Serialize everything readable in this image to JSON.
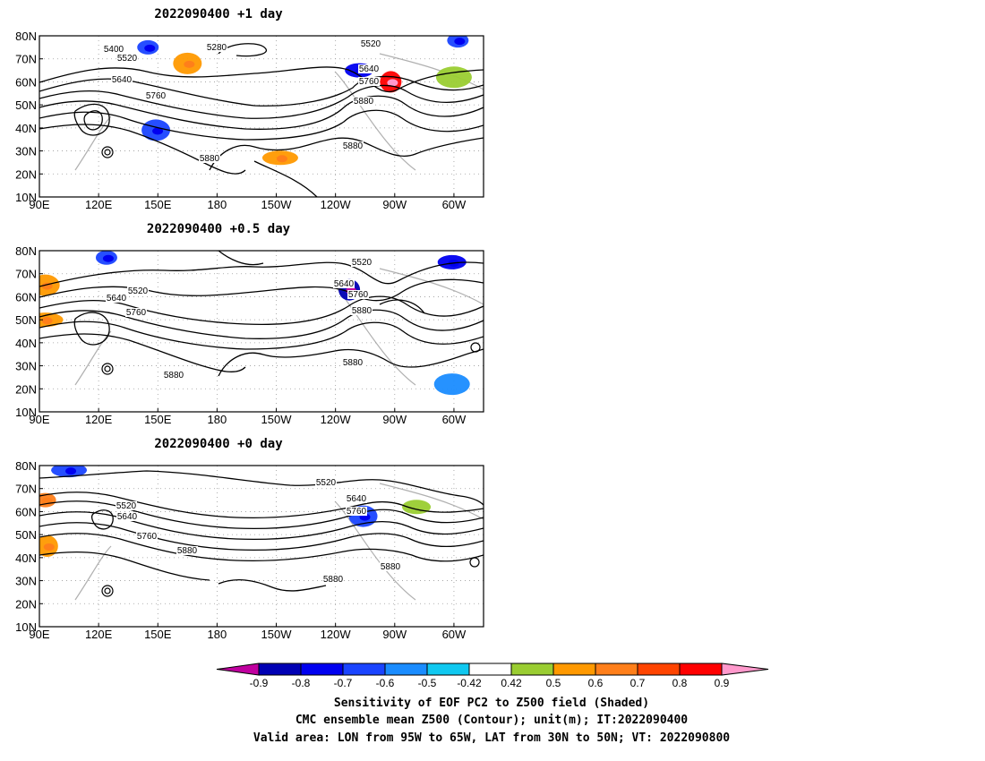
{
  "chart_data": [
    {
      "type": "map",
      "title": "2022090400  +1 day",
      "x_ticks": [
        "90E",
        "120E",
        "150E",
        "180",
        "150W",
        "120W",
        "90W",
        "60W"
      ],
      "y_ticks": [
        "10N",
        "20N",
        "30N",
        "40N",
        "50N",
        "60N",
        "70N",
        "80N"
      ],
      "lon_range": [
        "90E",
        "45W"
      ],
      "lat_range": [
        "10N",
        "80N"
      ],
      "contour_labels": [
        "5280",
        "5400",
        "5520",
        "5640",
        "5760",
        "5880",
        "5520",
        "5640",
        "5760",
        "5880",
        "5880"
      ],
      "shaded_patches": [
        {
          "lon": 145,
          "lat": 75,
          "value": -0.6
        },
        {
          "lon": 149,
          "lat": 39,
          "value": -0.6
        },
        {
          "lon": 212,
          "lat": 27,
          "value": 0.6
        },
        {
          "lon": 268,
          "lat": 60,
          "value": 0.8
        },
        {
          "lon": 252,
          "lat": 65,
          "value": -0.7
        },
        {
          "lon": 300,
          "lat": 62,
          "value": 0.5
        },
        {
          "lon": 302,
          "lat": 78,
          "value": -0.6
        },
        {
          "lon": 165,
          "lat": 68,
          "value": 0.6
        }
      ]
    },
    {
      "type": "map",
      "title": "2022090400  +0.5 day",
      "x_ticks": [
        "90E",
        "120E",
        "150E",
        "180",
        "150W",
        "120W",
        "90W",
        "60W"
      ],
      "y_ticks": [
        "10N",
        "20N",
        "30N",
        "40N",
        "50N",
        "60N",
        "70N",
        "80N"
      ],
      "lon_range": [
        "90E",
        "45W"
      ],
      "lat_range": [
        "10N",
        "80N"
      ],
      "contour_labels": [
        "5520",
        "5640",
        "5760",
        "5520",
        "5640",
        "5760",
        "5880",
        "5880",
        "5880"
      ],
      "shaded_patches": [
        {
          "lon": 124,
          "lat": 77,
          "value": -0.6
        },
        {
          "lon": 93,
          "lat": 65,
          "value": 0.6
        },
        {
          "lon": 93,
          "lat": 50,
          "value": 0.6
        },
        {
          "lon": 247,
          "lat": 63,
          "value": -0.8
        },
        {
          "lon": 299,
          "lat": 75,
          "value": -0.7
        },
        {
          "lon": 299,
          "lat": 22,
          "value": -0.5
        }
      ]
    },
    {
      "type": "map",
      "title": "2022090400  +0 day",
      "x_ticks": [
        "90E",
        "120E",
        "150E",
        "180",
        "150W",
        "120W",
        "90W",
        "60W"
      ],
      "y_ticks": [
        "10N",
        "20N",
        "30N",
        "40N",
        "50N",
        "60N",
        "70N",
        "80N"
      ],
      "lon_range": [
        "90E",
        "45W"
      ],
      "lat_range": [
        "10N",
        "80N"
      ],
      "contour_labels": [
        "5520",
        "5640",
        "5760",
        "5880",
        "5520",
        "5640",
        "5760",
        "5880",
        "5880"
      ],
      "shaded_patches": [
        {
          "lon": 93,
          "lat": 65,
          "value": 0.7
        },
        {
          "lon": 254,
          "lat": 58,
          "value": -0.6
        },
        {
          "lon": 105,
          "lat": 78,
          "value": -0.6
        },
        {
          "lon": 94,
          "lat": 45,
          "value": 0.6
        },
        {
          "lon": 281,
          "lat": 62,
          "value": 0.5
        }
      ]
    }
  ],
  "colorbar": {
    "labels": [
      "-0.9",
      "-0.8",
      "-0.7",
      "-0.6",
      "-0.5",
      "-0.42",
      "0.42",
      "0.5",
      "0.6",
      "0.7",
      "0.8",
      "0.9"
    ],
    "colors": [
      "#c0009f",
      "#0000b4",
      "#0000f0",
      "#1a44ff",
      "#1a8cff",
      "#10c8f0",
      "#ffffff",
      "#9acd32",
      "#ff9900",
      "#ff7f1a",
      "#ff4400",
      "#ff0000",
      "#ff99cc"
    ]
  },
  "captions": [
    "Sensitivity of EOF PC2 to Z500 field (Shaded)",
    "CMC ensemble mean Z500 (Contour); unit(m); IT:2022090400",
    "Valid area: LON from 95W to 65W, LAT from 30N to 50N; VT: 2022090800"
  ]
}
